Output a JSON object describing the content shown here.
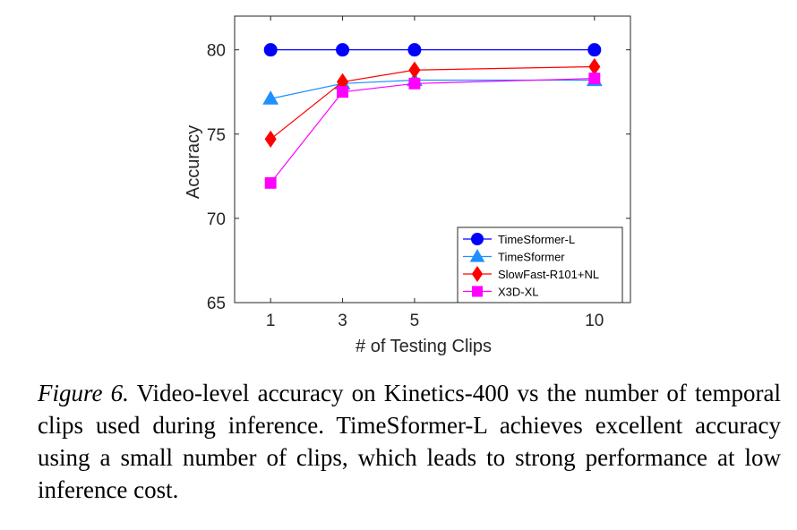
{
  "chart_data": {
    "type": "line",
    "xlabel": "# of Testing Clips",
    "ylabel": "Accuracy",
    "x_ticks": [
      1,
      3,
      5,
      10
    ],
    "x_tick_labels": [
      "1",
      "3",
      "5",
      "10"
    ],
    "y_ticks": [
      65,
      70,
      75,
      80
    ],
    "y_tick_labels": [
      "65",
      "70",
      "75",
      "80"
    ],
    "xlim": [
      0,
      11
    ],
    "ylim": [
      65,
      82
    ],
    "grid": false,
    "legend_position": "bottom-right",
    "series": [
      {
        "name": "TimeSformer-L",
        "marker": "circle",
        "color": "#0000ff",
        "x": [
          1,
          3,
          5,
          10
        ],
        "y": [
          80.0,
          80.0,
          80.0,
          80.0
        ]
      },
      {
        "name": "TimeSformer",
        "marker": "triangle",
        "color": "#1e90ff",
        "x": [
          1,
          3,
          5,
          10
        ],
        "y": [
          77.1,
          78.0,
          78.2,
          78.2
        ]
      },
      {
        "name": "SlowFast-R101+NL",
        "marker": "diamond",
        "color": "#ff0000",
        "x": [
          1,
          3,
          5,
          10
        ],
        "y": [
          74.7,
          78.1,
          78.8,
          79.0
        ]
      },
      {
        "name": "X3D-XL",
        "marker": "square",
        "color": "#ff00ff",
        "x": [
          1,
          3,
          5,
          10
        ],
        "y": [
          72.1,
          77.5,
          78.0,
          78.3
        ]
      }
    ]
  },
  "caption": {
    "label": "Figure 6.",
    "text": "Video-level accuracy on Kinetics-400 vs the number of temporal clips used during inference. TimeSformer-L achieves excellent accuracy using a small number of clips, which leads to strong performance at low inference cost."
  }
}
